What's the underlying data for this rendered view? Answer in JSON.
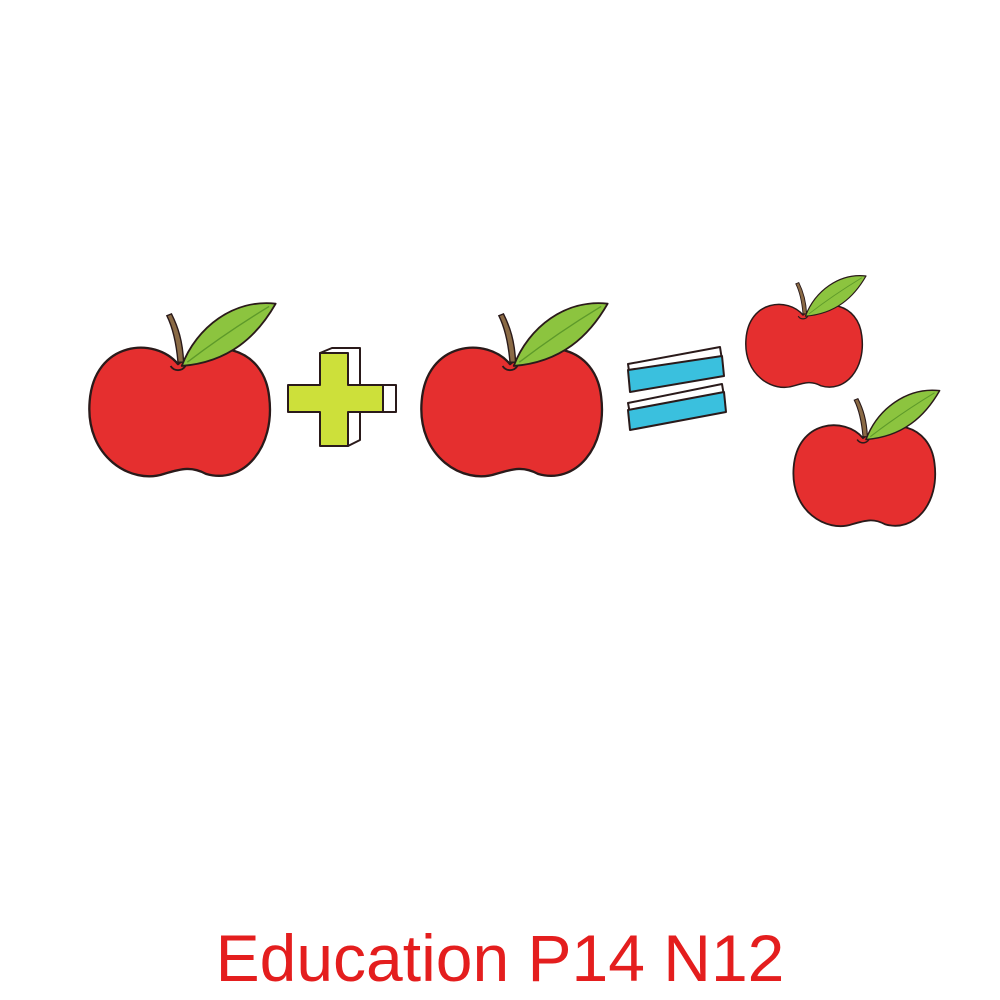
{
  "caption": "Education P14 N12",
  "equation": {
    "left_apples": 1,
    "right_apples": 1,
    "result_apples": 2,
    "operator_plus": "plus-sign",
    "operator_equals": "equals-sign"
  },
  "colors": {
    "apple_red": "#e52f2f",
    "leaf_green": "#8cc43f",
    "stem_brown": "#8a6a45",
    "plus_green": "#cde03a",
    "equals_blue": "#3ac0de",
    "caption_red": "#e41e1e",
    "outline": "#2a1a1a"
  }
}
